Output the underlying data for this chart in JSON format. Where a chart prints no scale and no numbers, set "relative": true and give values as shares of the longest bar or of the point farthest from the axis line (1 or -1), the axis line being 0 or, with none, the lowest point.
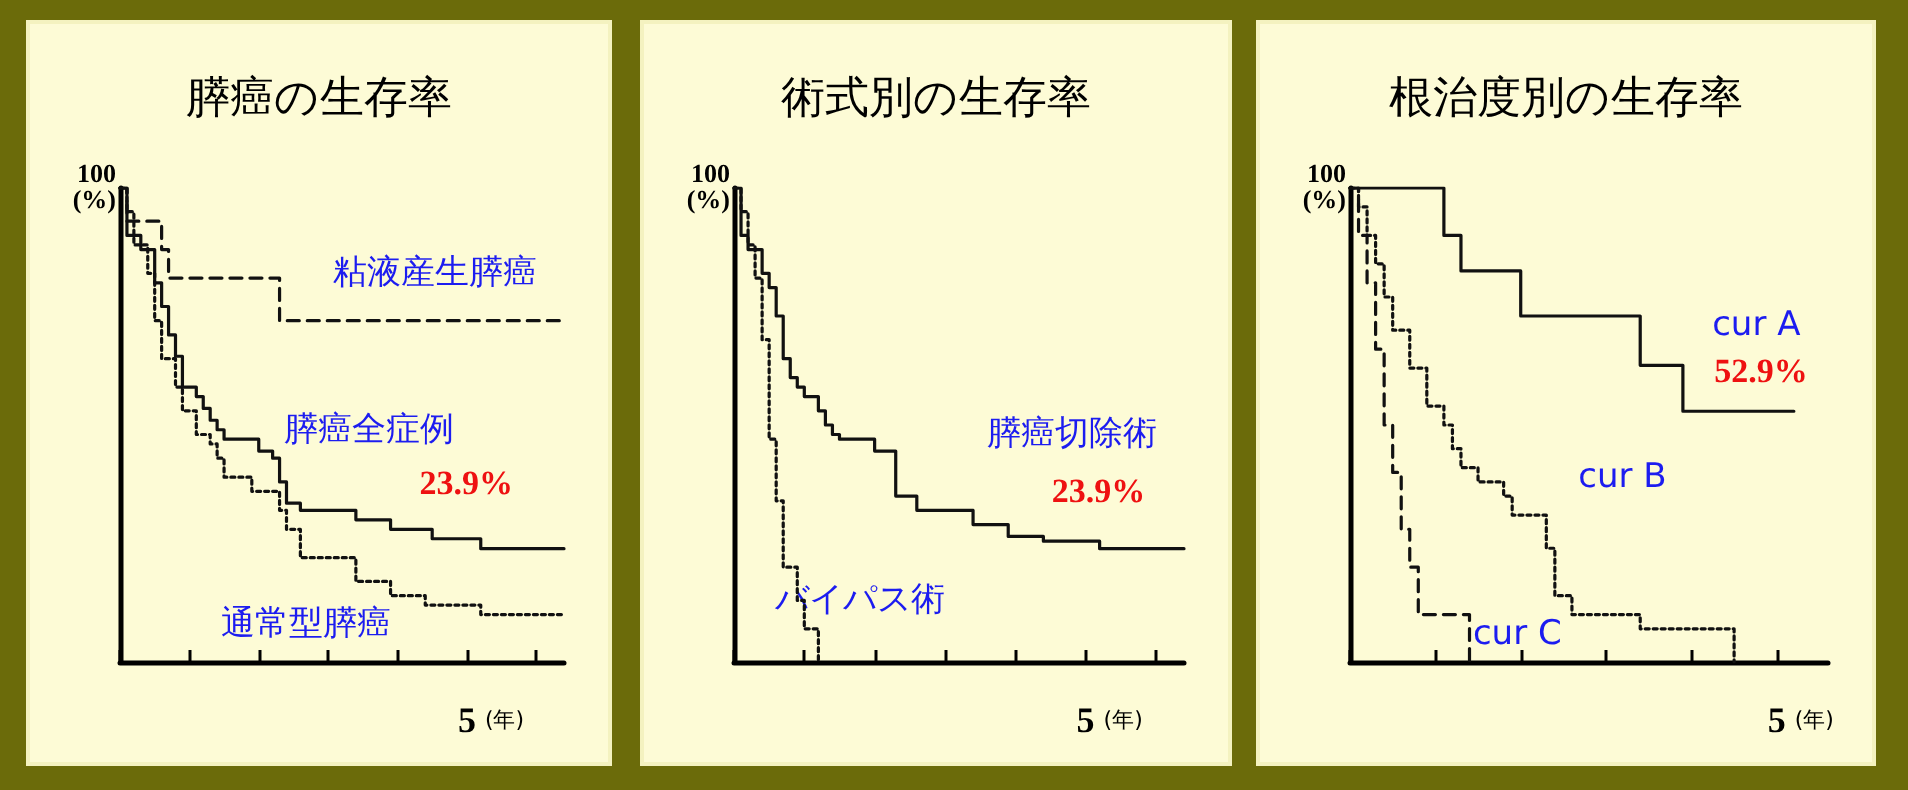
{
  "chart_data": [
    {
      "type": "step",
      "title": "膵癌の生存率",
      "ylabel": "100 (%)",
      "xlabel": "(年)",
      "relative": true,
      "grid": false,
      "legend": false,
      "marker": "none",
      "categories": [
        null,
        null,
        null,
        null,
        null,
        null,
        null,
        null,
        null,
        null,
        null,
        null,
        null,
        null,
        null,
        null,
        null,
        null,
        null,
        null,
        null,
        null,
        null,
        null,
        null,
        null,
        null,
        null,
        null,
        null,
        null,
        null,
        null,
        null,
        null,
        null,
        null,
        null,
        null,
        null,
        null,
        null,
        null,
        null,
        null,
        null,
        null,
        null,
        null,
        null,
        null,
        null,
        null,
        null,
        null,
        null,
        null,
        null,
        null,
        null,
        null,
        null,
        null,
        null,
        null
      ],
      "annotations": [
        {
          "text": "23.9%",
          "y": 0.239
        },
        "5"
      ],
      "series": [
        {
          "name": "粘液産生膵癌",
          "color": "#111111",
          "line_style": "dashed",
          "values": [
            1,
            0.93,
            0.93,
            0.93,
            0.93,
            0.93,
            0.87,
            0.81,
            0.81,
            0.81,
            0.81,
            0.81,
            0.81,
            0.81,
            0.81,
            0.81,
            0.81,
            0.81,
            0.81,
            0.81,
            0.81,
            0.81,
            0.81,
            0.72,
            0.72,
            0.72,
            0.72,
            0.72,
            0.72,
            0.72,
            0.72,
            0.72,
            0.72,
            0.72,
            0.72,
            0.72,
            0.72,
            0.72,
            0.72,
            0.72,
            0.72,
            0.72,
            0.72,
            0.72,
            0.72,
            0.72,
            0.72,
            0.72,
            0.72,
            0.72,
            0.72,
            0.72,
            0.72,
            0.72,
            0.72,
            0.72,
            0.72,
            0.72,
            0.72,
            0.72,
            0.72,
            0.72,
            0.72,
            0.72,
            0.72
          ]
        },
        {
          "name": "膵癌全症例",
          "color": "#111111",
          "line_style": "solid",
          "values": [
            1,
            0.9,
            0.9,
            0.87,
            0.87,
            0.8,
            0.75,
            0.69,
            0.645,
            0.58,
            0.58,
            0.56,
            0.535,
            0.51,
            0.49,
            0.47,
            0.47,
            0.47,
            0.47,
            0.47,
            0.445,
            0.445,
            0.43,
            0.38,
            0.335,
            0.335,
            0.32,
            0.32,
            0.32,
            0.32,
            0.32,
            0.32,
            0.32,
            0.32,
            0.3,
            0.3,
            0.3,
            0.3,
            0.3,
            0.28,
            0.28,
            0.28,
            0.28,
            0.28,
            0.28,
            0.26,
            0.26,
            0.26,
            0.26,
            0.26,
            0.26,
            0.26,
            0.239,
            0.239,
            0.239,
            0.239,
            0.239,
            0.239,
            0.239,
            0.239,
            0.239,
            0.239,
            0.239,
            0.239,
            0.239
          ]
        },
        {
          "name": "通常型膵癌",
          "color": "#111111",
          "line_style": "dotted",
          "values": [
            1,
            0.95,
            0.88,
            0.88,
            0.82,
            0.72,
            0.64,
            0.64,
            0.58,
            0.53,
            0.53,
            0.48,
            0.48,
            0.46,
            0.43,
            0.39,
            0.39,
            0.39,
            0.39,
            0.36,
            0.36,
            0.36,
            0.36,
            0.32,
            0.28,
            0.28,
            0.22,
            0.22,
            0.22,
            0.22,
            0.22,
            0.22,
            0.22,
            0.22,
            0.17,
            0.17,
            0.17,
            0.17,
            0.17,
            0.14,
            0.14,
            0.14,
            0.14,
            0.14,
            0.12,
            0.12,
            0.12,
            0.12,
            0.12,
            0.12,
            0.12,
            0.12,
            0.1,
            0.1,
            0.1,
            0.1,
            0.1,
            0.1,
            0.1,
            0.1,
            0.1,
            0.1,
            0.1,
            0.1,
            0.1
          ]
        }
      ]
    },
    {
      "type": "step",
      "title": "術式別の生存率",
      "ylabel": "100 (%)",
      "xlabel": "(年)",
      "relative": true,
      "grid": false,
      "legend": false,
      "marker": "none",
      "categories": [
        null,
        null,
        null,
        null,
        null,
        null,
        null,
        null,
        null,
        null,
        null,
        null,
        null,
        null,
        null,
        null,
        null,
        null,
        null,
        null,
        null,
        null,
        null,
        null,
        null,
        null,
        null,
        null,
        null,
        null,
        null,
        null,
        null,
        null,
        null,
        null,
        null,
        null,
        null,
        null,
        null,
        null,
        null,
        null,
        null,
        null,
        null,
        null,
        null,
        null,
        null,
        null,
        null,
        null,
        null,
        null,
        null,
        null,
        null,
        null,
        null,
        null,
        null,
        null,
        null
      ],
      "annotations": [
        {
          "text": "23.9%",
          "y": 0.239
        },
        "5"
      ],
      "series": [
        {
          "name": "膵癌切除術",
          "color": "#111111",
          "line_style": "solid",
          "values": [
            1,
            0.9,
            0.87,
            0.87,
            0.82,
            0.79,
            0.73,
            0.64,
            0.6,
            0.58,
            0.56,
            0.56,
            0.53,
            0.5,
            0.48,
            0.47,
            0.47,
            0.47,
            0.47,
            0.47,
            0.445,
            0.445,
            0.445,
            0.35,
            0.35,
            0.35,
            0.32,
            0.32,
            0.32,
            0.32,
            0.32,
            0.32,
            0.32,
            0.32,
            0.29,
            0.29,
            0.29,
            0.29,
            0.29,
            0.265,
            0.265,
            0.265,
            0.265,
            0.265,
            0.255,
            0.255,
            0.255,
            0.255,
            0.255,
            0.255,
            0.255,
            0.255,
            0.239,
            0.239,
            0.239,
            0.239,
            0.239,
            0.239,
            0.239,
            0.239,
            0.239,
            0.239,
            0.239,
            0.239,
            0.239
          ]
        },
        {
          "name": "バイパス術",
          "color": "#111111",
          "line_style": "dotted",
          "values": [
            1,
            0.95,
            0.88,
            0.81,
            0.68,
            0.47,
            0.34,
            0.2,
            0.2,
            0.13,
            0.07,
            0.07,
            0,
            null,
            null,
            null,
            null,
            null,
            null,
            null,
            null,
            null,
            null,
            null,
            null,
            null,
            null,
            null,
            null,
            null,
            null,
            null,
            null,
            null,
            null,
            null,
            null,
            null,
            null,
            null,
            null,
            null,
            null,
            null,
            null,
            null,
            null,
            null,
            null,
            null,
            null,
            null,
            null,
            null,
            null,
            null,
            null,
            null,
            null,
            null,
            null,
            null,
            null,
            null,
            null
          ]
        }
      ]
    },
    {
      "type": "step",
      "title": "根治度別の生存率",
      "ylabel": "100 (%)",
      "xlabel": "(年)",
      "relative": true,
      "grid": false,
      "legend": false,
      "marker": "none",
      "categories": [
        null,
        null,
        null,
        null,
        null,
        null,
        null,
        null,
        null,
        null,
        null,
        null,
        null,
        null,
        null,
        null,
        null,
        null,
        null,
        null,
        null,
        null,
        null,
        null,
        null,
        null,
        null,
        null,
        null,
        null,
        null,
        null,
        null,
        null,
        null,
        null,
        null,
        null,
        null,
        null,
        null,
        null,
        null,
        null,
        null,
        null,
        null,
        null,
        null,
        null,
        null,
        null,
        null,
        null,
        null,
        null,
        null
      ],
      "annotations": [
        {
          "text": "52.9%",
          "y": 0.529
        },
        "5"
      ],
      "series": [
        {
          "name": "cur A",
          "color": "#111111",
          "line_style": "solid",
          "values": [
            1,
            1,
            1,
            1,
            1,
            1,
            1,
            1,
            1,
            1,
            1,
            0.9,
            0.9,
            0.825,
            0.825,
            0.825,
            0.825,
            0.825,
            0.825,
            0.825,
            0.73,
            0.73,
            0.73,
            0.73,
            0.73,
            0.73,
            0.73,
            0.73,
            0.73,
            0.73,
            0.73,
            0.73,
            0.73,
            0.73,
            0.626,
            0.626,
            0.626,
            0.626,
            0.626,
            0.529,
            0.529,
            0.529,
            0.529,
            0.529,
            0.529,
            0.529,
            0.529,
            0.529,
            0.529,
            0.529,
            0.529,
            0.529,
            0.529,
            null,
            null,
            null,
            null
          ]
        },
        {
          "name": "cur B",
          "color": "#111111",
          "line_style": "dotted",
          "values": [
            1,
            0.96,
            0.9,
            0.84,
            0.77,
            0.7,
            0.7,
            0.62,
            0.62,
            0.54,
            0.54,
            0.5,
            0.45,
            0.41,
            0.41,
            0.38,
            0.38,
            0.38,
            0.35,
            0.31,
            0.31,
            0.31,
            0.31,
            0.24,
            0.14,
            0.14,
            0.1,
            0.1,
            0.1,
            0.1,
            0.1,
            0.1,
            0.1,
            0.1,
            0.07,
            0.07,
            0.07,
            0.07,
            0.07,
            0.07,
            0.07,
            0.07,
            0.07,
            0.07,
            0.07,
            0,
            null,
            null,
            null,
            null,
            null,
            null,
            null,
            null,
            null,
            null,
            null
          ]
        },
        {
          "name": "cur C",
          "color": "#111111",
          "line_style": "dashed",
          "values": [
            1,
            0.9,
            0.8,
            0.66,
            0.5,
            0.4,
            0.28,
            0.2,
            0.1,
            0.1,
            0.1,
            0.1,
            0.1,
            0.1,
            0,
            null,
            null,
            null,
            null,
            null,
            null,
            null,
            null,
            null,
            null,
            null,
            null,
            null,
            null,
            null,
            null,
            null,
            null,
            null,
            null,
            null,
            null,
            null,
            null,
            null,
            null,
            null,
            null,
            null,
            null,
            null,
            null,
            null,
            null,
            null,
            null,
            null,
            null,
            null,
            null,
            null,
            null
          ]
        }
      ]
    }
  ]
}
